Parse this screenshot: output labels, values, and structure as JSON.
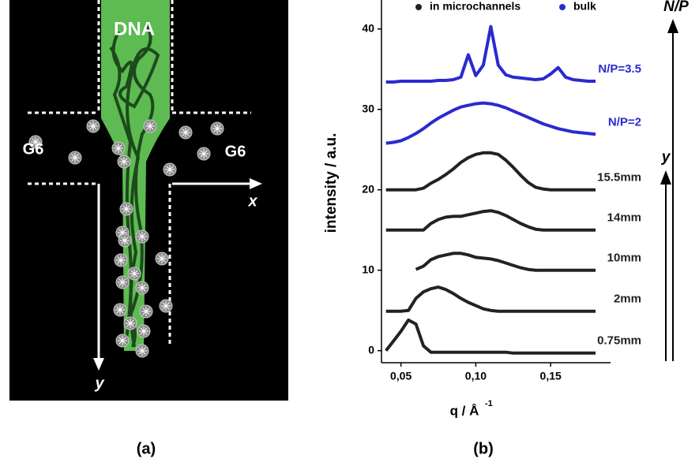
{
  "diagram": {
    "dna": "DNA",
    "left_label": "G6",
    "right_label": "G6",
    "x_label": "x",
    "y_label": "y",
    "panel_label": "(a)"
  },
  "chart_data": {
    "type": "line",
    "panel_label": "(b)",
    "x_label": "q / Å",
    "x_label_sup": "-1",
    "y_label": "intensity / a.u.",
    "x": [
      0.04,
      0.045,
      0.05,
      0.055,
      0.06,
      0.065,
      0.07,
      0.075,
      0.08,
      0.085,
      0.09,
      0.095,
      0.1,
      0.105,
      0.11,
      0.115,
      0.12,
      0.125,
      0.13,
      0.135,
      0.14,
      0.145,
      0.15,
      0.155,
      0.16,
      0.165,
      0.17,
      0.175,
      0.18
    ],
    "series": [
      {
        "name": "in microchannels",
        "color": "#222222",
        "curves": [
          {
            "label": "0.75mm",
            "values": [
              0,
              1.2,
              2.4,
              3.8,
              3.3,
              0.6,
              -0.2,
              -0.2,
              -0.2,
              -0.2,
              -0.2,
              -0.2,
              -0.2,
              -0.2,
              -0.2,
              -0.2,
              -0.2,
              -0.3,
              -0.3,
              -0.3,
              -0.3,
              -0.3,
              -0.3,
              -0.3,
              -0.3,
              -0.3,
              -0.3,
              -0.3,
              -0.3
            ]
          },
          {
            "label": "2mm",
            "values": [
              4.9,
              4.9,
              4.9,
              5.0,
              6.5,
              7.3,
              7.7,
              7.9,
              7.6,
              7.1,
              6.5,
              6.0,
              5.6,
              5.2,
              5.0,
              4.9,
              4.9,
              4.9,
              4.9,
              4.9,
              4.9,
              4.9,
              4.9,
              4.9,
              4.9,
              4.9,
              4.9,
              4.9,
              4.9
            ]
          },
          {
            "label": "10mm",
            "values": [
              null,
              null,
              null,
              null,
              10.1,
              10.5,
              11.3,
              11.7,
              11.9,
              12.1,
              12.1,
              11.9,
              11.6,
              11.5,
              11.4,
              11.2,
              10.9,
              10.6,
              10.3,
              10.1,
              10.0,
              10.0,
              10.0,
              10.0,
              10.0,
              10.0,
              10.0,
              10.0,
              10.0
            ]
          },
          {
            "label": "14mm",
            "values": [
              15.0,
              15.0,
              15.0,
              15.0,
              15.0,
              15.0,
              15.8,
              16.3,
              16.6,
              16.7,
              16.7,
              16.9,
              17.1,
              17.3,
              17.4,
              17.2,
              16.8,
              16.3,
              15.8,
              15.4,
              15.1,
              15.0,
              15.0,
              15.0,
              15.0,
              15.0,
              15.0,
              15.0,
              15.0
            ]
          },
          {
            "label": "15.5mm",
            "values": [
              20.0,
              20.0,
              20.0,
              20.0,
              20.0,
              20.2,
              20.8,
              21.3,
              21.9,
              22.6,
              23.4,
              24.0,
              24.4,
              24.6,
              24.6,
              24.4,
              23.7,
              22.8,
              21.8,
              20.9,
              20.3,
              20.1,
              20.0,
              20.0,
              20.0,
              20.0,
              20.0,
              20.0,
              20.0
            ]
          }
        ]
      },
      {
        "name": "bulk",
        "color": "#2a2ad0",
        "curves": [
          {
            "label": "N/P=2",
            "values": [
              25.8,
              25.9,
              26.1,
              26.5,
              27.0,
              27.6,
              28.3,
              28.9,
              29.4,
              29.9,
              30.3,
              30.5,
              30.7,
              30.8,
              30.7,
              30.5,
              30.2,
              29.8,
              29.4,
              29.0,
              28.6,
              28.2,
              27.9,
              27.6,
              27.4,
              27.2,
              27.1,
              27.0,
              26.9
            ]
          },
          {
            "label": "N/P=3.5",
            "values": [
              33.4,
              33.4,
              33.5,
              33.5,
              33.5,
              33.5,
              33.5,
              33.6,
              33.6,
              33.7,
              34.0,
              36.8,
              34.2,
              35.5,
              40.3,
              35.5,
              34.3,
              34.0,
              33.9,
              33.8,
              33.7,
              33.8,
              34.4,
              35.2,
              34.0,
              33.7,
              33.6,
              33.5,
              33.5
            ]
          }
        ]
      }
    ],
    "xlim": [
      0.037,
      0.19
    ],
    "ylim": [
      -1.5,
      43.6
    ],
    "xticks": [
      {
        "value": 0.05,
        "label": "0,05"
      },
      {
        "value": 0.1,
        "label": "0,10"
      },
      {
        "value": 0.15,
        "label": "0,15"
      }
    ],
    "yticks": [
      0,
      10,
      20,
      30,
      40
    ],
    "arrow_np": "N/P",
    "arrow_y": "y"
  }
}
